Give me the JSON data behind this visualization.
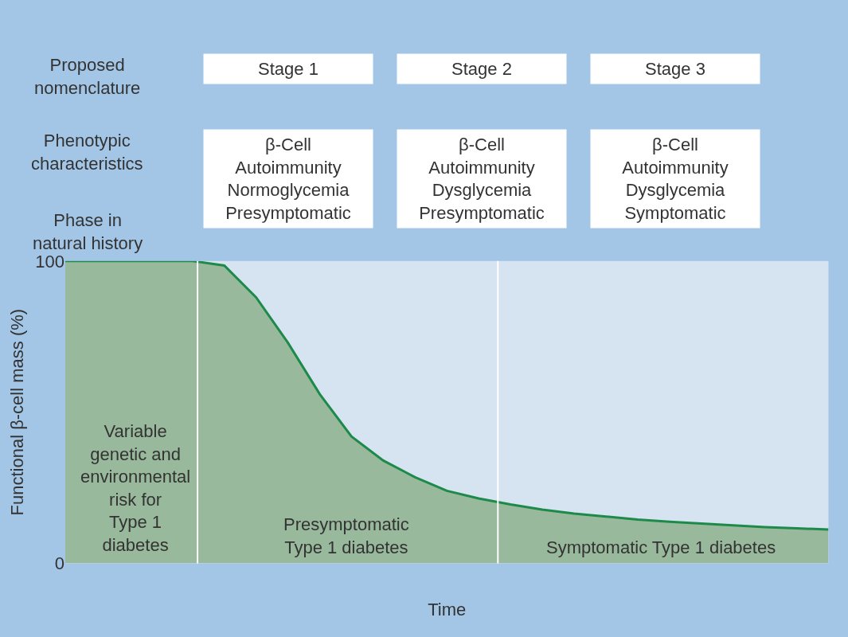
{
  "chart_data": {
    "type": "area",
    "xlabel": "Time",
    "ylabel": "Functional β-cell mass (%)",
    "categories": [
      null,
      null,
      null,
      null,
      null,
      null,
      null,
      null,
      null,
      null,
      null,
      null,
      null,
      null,
      null,
      null,
      null,
      null,
      null,
      null,
      null,
      null,
      null,
      null,
      null
    ],
    "series": [
      {
        "color": "#98b99c",
        "values": [
          100,
          100,
          100,
          100,
          100,
          98.5,
          88,
          73,
          56,
          42,
          34,
          28.5,
          24,
          21.5,
          19.5,
          17.8,
          16.5,
          15.5,
          14.5,
          13.8,
          13.2,
          12.6,
          12,
          11.6,
          11.2
        ]
      }
    ],
    "ylim": [
      0,
      100
    ],
    "yticks": [
      0,
      100
    ],
    "tick_labels": "y",
    "annotations": [
      "Proposed\nnomenclature",
      "Phenotypic\ncharacteristics",
      "Phase in\nnatural history",
      "Stage 1",
      "Stage 2",
      "Stage 3",
      "β-Cell\nAutoimmunity\nNormoglycemia\nPresymptomatic",
      "β-Cell\nAutoimmunity\nDysglycemia\nPresymptomatic",
      "β-Cell\nAutoimmunity\nDysglycemia\nSymptomatic",
      "Variable\ngenetic and\nenvironmental\nrisk for\nType 1\ndiabetes",
      "Presymptomatic\nType 1 diabetes",
      "Symptomatic Type 1 diabetes"
    ]
  }
}
